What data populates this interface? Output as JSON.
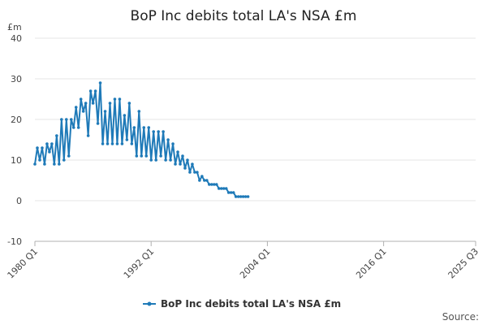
{
  "chart_data": {
    "type": "line",
    "title": "BoP Inc debits total LA's NSA £m",
    "ylabel_unit": "£m",
    "ylim": [
      -10,
      40
    ],
    "yticks": [
      40,
      30,
      20,
      10,
      0,
      -10
    ],
    "xlim": [
      1980.0,
      2025.5
    ],
    "xticks": [
      {
        "label": "1980 Q1",
        "value": 1980.0
      },
      {
        "label": "1992 Q1",
        "value": 1992.0
      },
      {
        "label": "2004 Q1",
        "value": 2004.0
      },
      {
        "label": "2016 Q1",
        "value": 2016.0
      },
      {
        "label": "2025 Q3",
        "value": 2025.5
      }
    ],
    "legend": "bottom-center",
    "source_label": "Source:",
    "series": [
      {
        "name": "BoP Inc debits total LA's NSA £m",
        "color": "#1f7ab8",
        "start": 1980.0,
        "step": 0.25,
        "values": [
          9,
          13,
          10,
          13,
          9,
          14,
          12,
          14,
          9,
          16,
          9,
          20,
          10,
          20,
          11,
          20,
          18,
          23,
          18,
          25,
          22,
          24,
          16,
          27,
          24,
          27,
          19,
          29,
          14,
          22,
          14,
          24,
          14,
          25,
          14,
          25,
          14,
          21,
          15,
          24,
          14,
          18,
          11,
          22,
          11,
          18,
          11,
          18,
          10,
          17,
          10,
          17,
          11,
          17,
          10,
          15,
          10,
          14,
          9,
          12,
          9,
          11,
          8,
          10,
          7,
          9,
          7,
          7,
          5,
          6,
          5,
          5,
          4,
          4,
          4,
          4,
          3,
          3,
          3,
          3,
          2,
          2,
          2,
          1,
          1,
          1,
          1,
          1,
          1
        ]
      }
    ]
  }
}
